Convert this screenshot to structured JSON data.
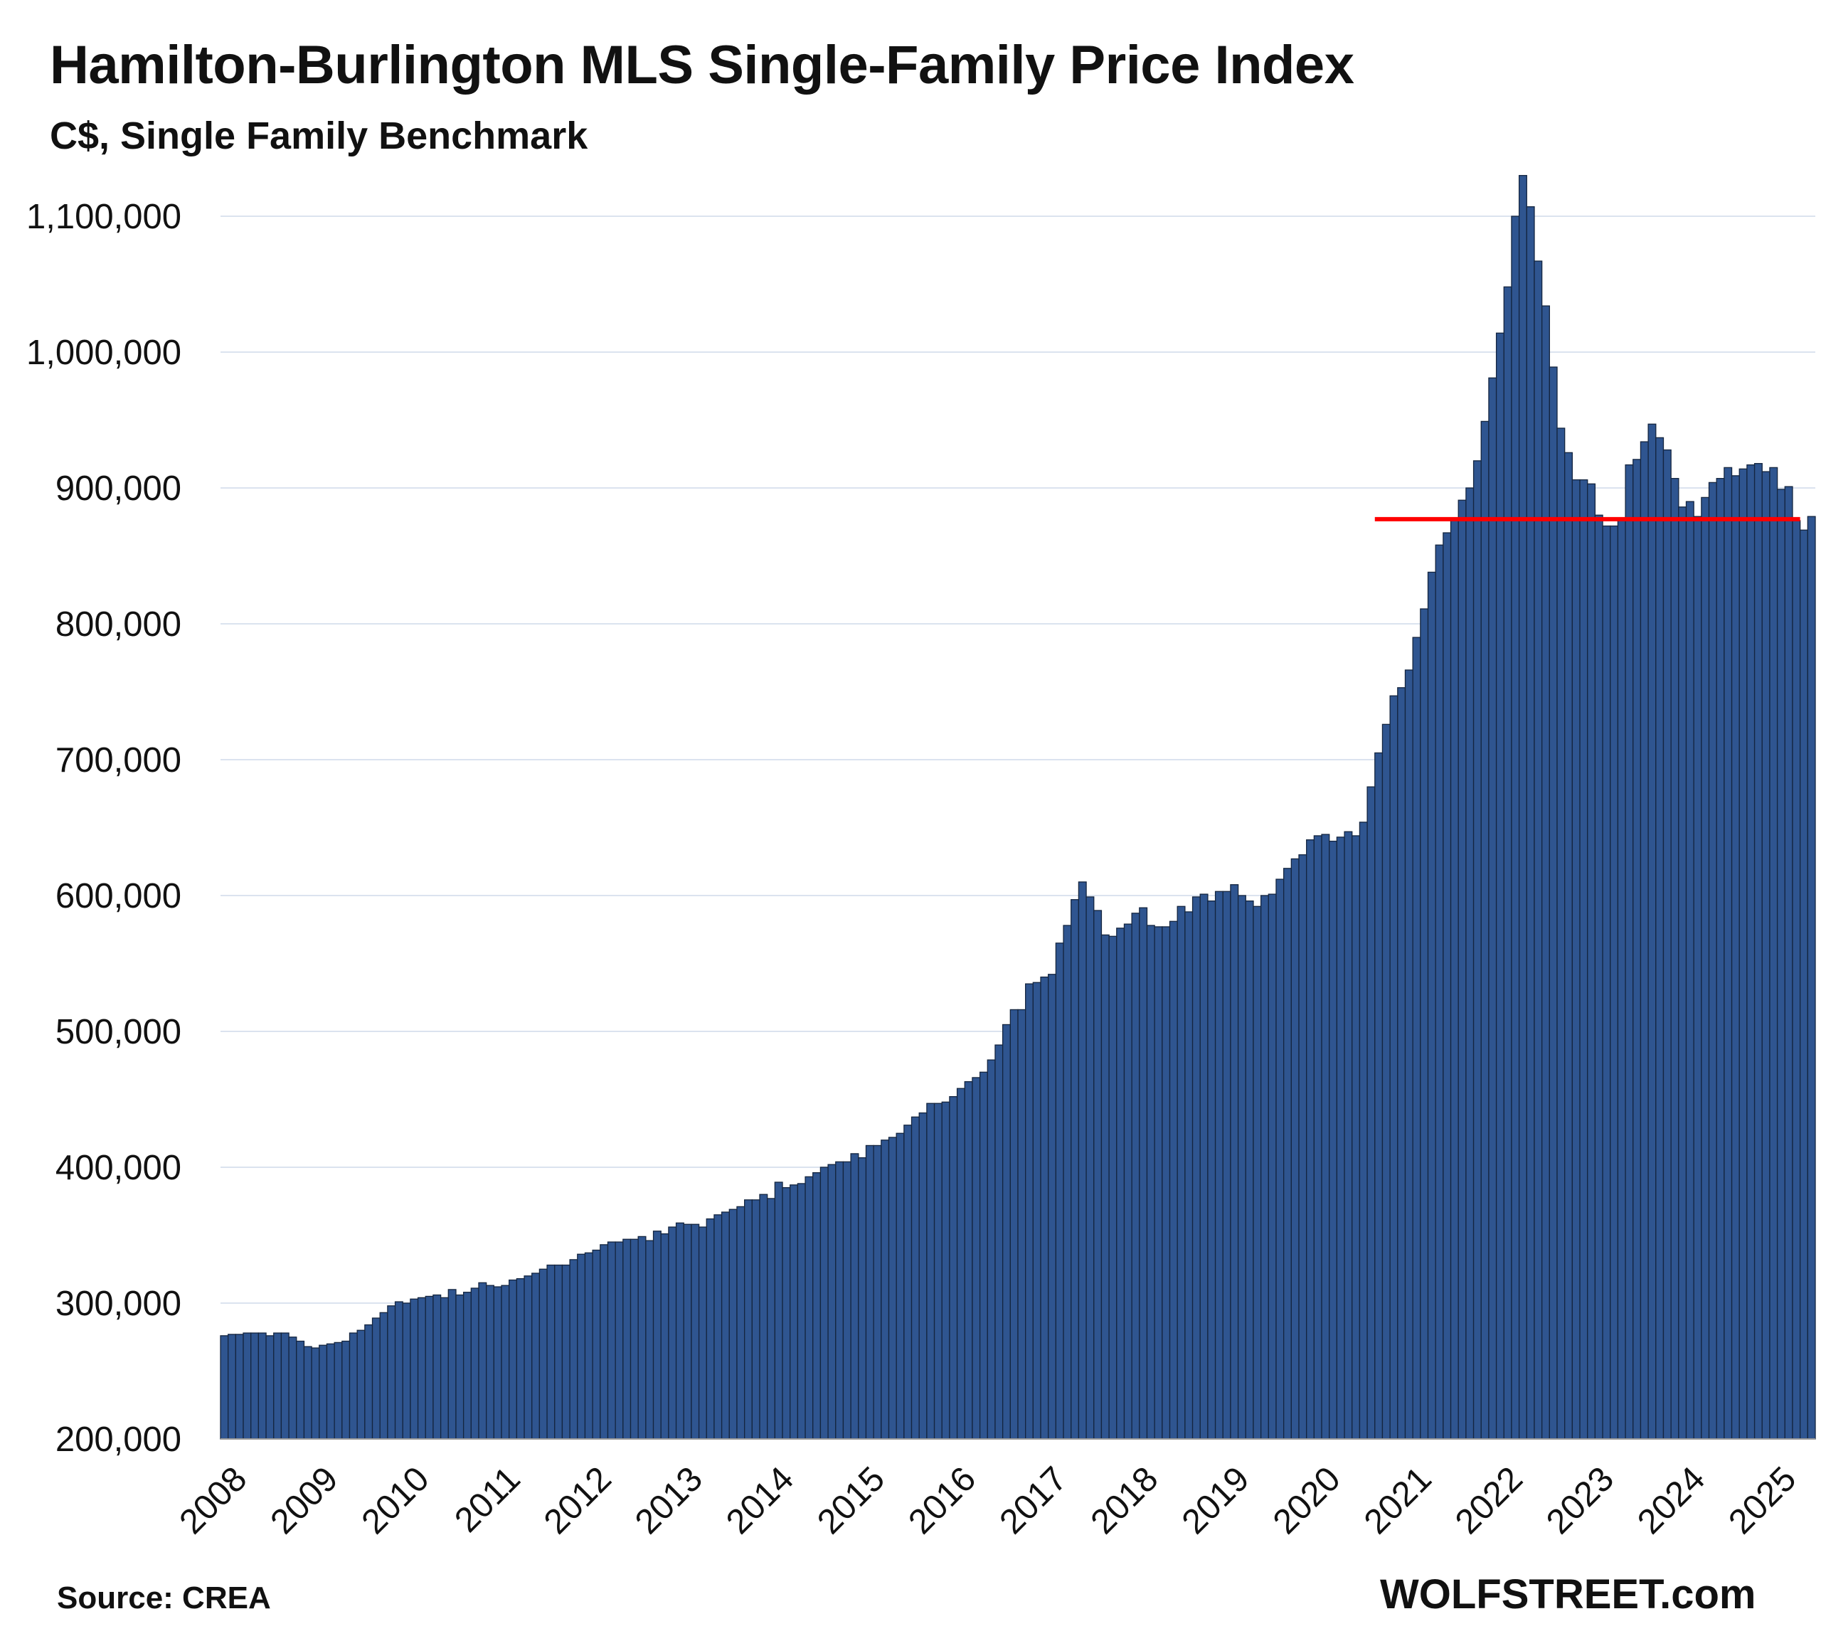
{
  "page": {
    "title": "Hamilton-Burlington MLS Single-Family Price Index",
    "subtitle": "C$, Single Family Benchmark",
    "source": "Source: CREA",
    "brand": "WOLFSTREET.com"
  },
  "colors": {
    "bar": "#2f5590",
    "bar_edge": "#14253f",
    "reference_line": "#ff0000",
    "grid": "#dbe3ef",
    "axis": "#999999"
  },
  "chart_data": {
    "type": "bar",
    "title": "Hamilton-Burlington MLS Single-Family Price Index",
    "subtitle": "C$, Single Family Benchmark",
    "xlabel": "",
    "ylabel": "",
    "ylim": [
      200000,
      1130000
    ],
    "yticks": [
      200000,
      300000,
      400000,
      500000,
      600000,
      700000,
      800000,
      900000,
      1000000,
      1100000
    ],
    "ytick_labels": [
      "200,000",
      "300,000",
      "400,000",
      "500,000",
      "600,000",
      "700,000",
      "800,000",
      "900,000",
      "1,000,000",
      "1,100,000"
    ],
    "xtick_labels": [
      "2008",
      "2009",
      "2010",
      "2011",
      "2012",
      "2013",
      "2014",
      "2015",
      "2016",
      "2017",
      "2018",
      "2019",
      "2020",
      "2021",
      "2022",
      "2023",
      "2024",
      "2025"
    ],
    "start": "2008-01",
    "frequency": "monthly",
    "grid": "horizontal",
    "reference_line": {
      "value": 877000,
      "from": "2020-09",
      "to": "2025-04"
    },
    "values": [
      276000,
      277000,
      277000,
      278000,
      278000,
      278000,
      276000,
      278000,
      278000,
      275000,
      272000,
      268000,
      267000,
      269000,
      270000,
      271000,
      272000,
      278000,
      280000,
      284000,
      289000,
      293000,
      298000,
      301000,
      300000,
      303000,
      304000,
      305000,
      306000,
      304000,
      310000,
      306000,
      308000,
      311000,
      315000,
      313000,
      312000,
      313000,
      317000,
      318000,
      320000,
      322000,
      325000,
      328000,
      328000,
      328000,
      332000,
      336000,
      337000,
      339000,
      343000,
      345000,
      345000,
      347000,
      347000,
      349000,
      346000,
      353000,
      351000,
      356000,
      359000,
      358000,
      358000,
      356000,
      362000,
      365000,
      367000,
      369000,
      371000,
      376000,
      376000,
      380000,
      377000,
      389000,
      385000,
      387000,
      388000,
      393000,
      396000,
      400000,
      402000,
      404000,
      404000,
      410000,
      407000,
      416000,
      416000,
      420000,
      422000,
      425000,
      431000,
      437000,
      440000,
      447000,
      447000,
      448000,
      452000,
      458000,
      463000,
      466000,
      470000,
      479000,
      490000,
      505000,
      516000,
      516000,
      535000,
      536000,
      540000,
      542000,
      565000,
      578000,
      597000,
      610000,
      599000,
      589000,
      571000,
      570000,
      576000,
      579000,
      587000,
      591000,
      578000,
      577000,
      577000,
      581000,
      592000,
      588000,
      599000,
      601000,
      596000,
      603000,
      603000,
      608000,
      600000,
      596000,
      592000,
      600000,
      601000,
      612000,
      620000,
      627000,
      630000,
      641000,
      644000,
      645000,
      640000,
      643000,
      647000,
      644000,
      654000,
      680000,
      705000,
      726000,
      747000,
      753000,
      766000,
      790000,
      811000,
      838000,
      858000,
      867000,
      876000,
      891000,
      900000,
      920000,
      949000,
      981000,
      1014000,
      1048000,
      1100000,
      1130000,
      1107000,
      1067000,
      1034000,
      989000,
      944000,
      926000,
      906000,
      906000,
      903000,
      880000,
      872000,
      872000,
      878000,
      917000,
      921000,
      934000,
      947000,
      937000,
      928000,
      907000,
      886000,
      890000,
      879000,
      893000,
      904000,
      907000,
      915000,
      909000,
      914000,
      917000,
      918000,
      912000,
      915000,
      899000,
      901000,
      876000,
      869000,
      879000
    ]
  }
}
